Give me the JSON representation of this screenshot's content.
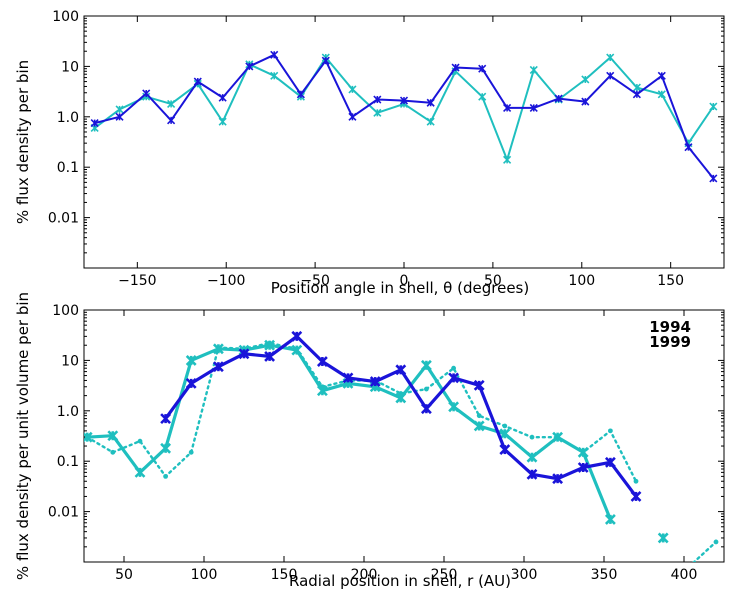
{
  "colors": {
    "c1994": "#1fbfbf",
    "c1999": "#1a14d9"
  },
  "chart_data": [
    {
      "type": "line",
      "yscale": "log",
      "xlabel": "Position angle in shell, θ (degrees)",
      "ylabel": "% flux density per bin",
      "xlim": [
        -180,
        180
      ],
      "ylim": [
        0.001,
        100
      ],
      "xticks": [
        -150,
        -100,
        -50,
        0,
        50,
        100,
        150
      ],
      "xtick_labels": [
        "−150",
        "−100",
        "−50",
        "0",
        "50",
        "100",
        "150"
      ],
      "yticks": [
        0.01,
        0.1,
        1,
        10,
        100
      ],
      "ytick_labels": [
        "0.01",
        "0.1",
        "1.0",
        "10",
        "100"
      ],
      "series": [
        {
          "name": "1994",
          "color_key": "c1994",
          "x": [
            -174,
            -160,
            -145,
            -131,
            -116,
            -102,
            -87,
            -73,
            -58,
            -44,
            -29,
            -15,
            0,
            15,
            29,
            44,
            58,
            73,
            87,
            102,
            116,
            131,
            145,
            160,
            174
          ],
          "y": [
            0.6,
            1.4,
            2.5,
            1.8,
            4.5,
            0.8,
            11,
            6.5,
            2.5,
            15,
            3.5,
            1.2,
            1.8,
            0.8,
            8,
            2.5,
            0.14,
            8.5,
            2.2,
            5.5,
            15,
            3.8,
            2.8,
            0.3,
            1.6
          ]
        },
        {
          "name": "1999",
          "color_key": "c1999",
          "x": [
            -174,
            -160,
            -145,
            -131,
            -116,
            -102,
            -87,
            -73,
            -58,
            -44,
            -29,
            -15,
            0,
            15,
            29,
            44,
            58,
            73,
            87,
            102,
            116,
            131,
            145,
            160,
            174
          ],
          "y": [
            0.75,
            1.0,
            2.9,
            0.85,
            5,
            2.4,
            10,
            17,
            2.8,
            13,
            1.0,
            2.2,
            2.1,
            1.9,
            9.5,
            9,
            1.5,
            1.5,
            2.3,
            2,
            6.5,
            2.8,
            6.5,
            0.25,
            0.06
          ]
        }
      ]
    },
    {
      "type": "line",
      "yscale": "log",
      "xlabel": "Radial position in shell, r (AU)",
      "ylabel": "% flux density per unit volume per bin",
      "xlim": [
        25,
        425
      ],
      "ylim": [
        0.001,
        100
      ],
      "xticks": [
        50,
        100,
        150,
        200,
        250,
        300,
        350,
        400
      ],
      "xtick_labels": [
        "50",
        "100",
        "150",
        "200",
        "250",
        "300",
        "350",
        "400"
      ],
      "yticks": [
        0.01,
        0.1,
        1,
        10,
        100
      ],
      "ytick_labels": [
        "0.01",
        "0.1",
        "1.0",
        "10",
        "100"
      ],
      "legend": {
        "placement": "top-right",
        "entries": [
          {
            "label": "1994",
            "color_key": "c1994"
          },
          {
            "label": "1999",
            "color_key": "c1999"
          }
        ]
      },
      "series": [
        {
          "name": "1994 (dotted)",
          "color_key": "c1994",
          "style": "dotted",
          "x": [
            27,
            43,
            60,
            76,
            92,
            109,
            125,
            141,
            158,
            174,
            190,
            207,
            223,
            239,
            256,
            272,
            288,
            305,
            321,
            337,
            354,
            370,
            387,
            403,
            420
          ],
          "y": [
            0.3,
            0.15,
            0.25,
            0.05,
            0.15,
            18,
            17,
            22,
            17,
            3,
            4,
            4,
            2.2,
            2.7,
            7,
            0.8,
            0.5,
            0.3,
            0.3,
            0.15,
            0.4,
            0.04,
            null,
            0.0008,
            0.0025
          ]
        },
        {
          "name": "1994",
          "color_key": "c1994",
          "style": "solid",
          "x": [
            27,
            43,
            60,
            76,
            92,
            109,
            125,
            141,
            158,
            174,
            190,
            207,
            223,
            239,
            256,
            272,
            288,
            305,
            321,
            337,
            354,
            370,
            387,
            403,
            420
          ],
          "y": [
            0.3,
            0.32,
            0.06,
            0.18,
            10,
            17,
            16,
            20,
            16,
            2.5,
            3.5,
            3,
            1.8,
            8,
            1.2,
            0.5,
            0.35,
            0.12,
            0.3,
            0.15,
            0.007,
            null,
            0.003,
            null,
            null
          ]
        },
        {
          "name": "1999",
          "color_key": "c1999",
          "style": "solid",
          "x": [
            76,
            92,
            109,
            125,
            141,
            158,
            174,
            190,
            207,
            223,
            239,
            256,
            272,
            288,
            305,
            321,
            337,
            354,
            370
          ],
          "y": [
            0.7,
            3.5,
            7.5,
            13.5,
            12,
            30,
            9.5,
            4.5,
            3.8,
            6.5,
            1.1,
            4.5,
            3.2,
            0.17,
            0.055,
            0.045,
            0.075,
            0.095,
            0.02
          ]
        }
      ]
    }
  ]
}
